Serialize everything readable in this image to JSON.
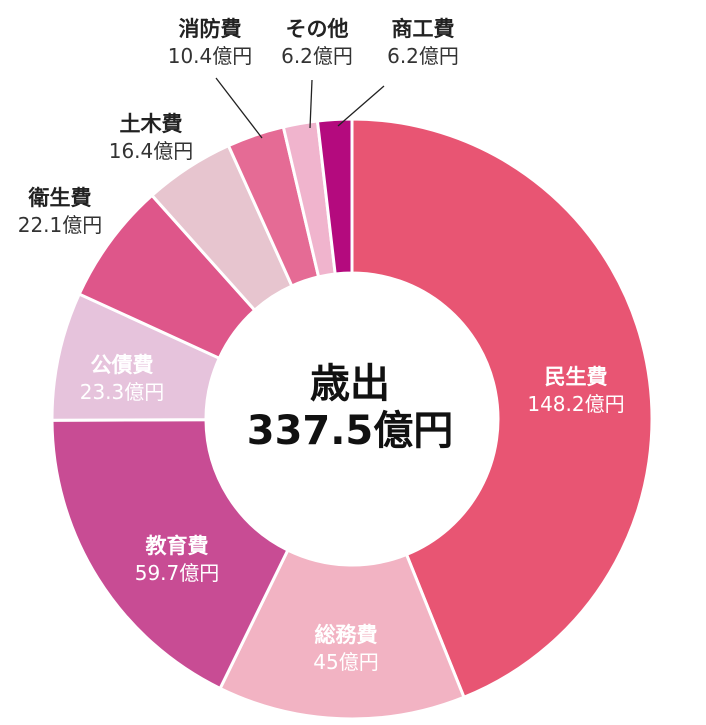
{
  "chart_data": {
    "type": "pie",
    "title": "歳出",
    "total_label": "337.5億円",
    "unit": "億円",
    "slices": [
      {
        "name": "民生費",
        "value_label": "148.2億円",
        "value": 148.2,
        "color": "#e85573"
      },
      {
        "name": "総務費",
        "value_label": "45億円",
        "value": 45.0,
        "color": "#f2b3c3"
      },
      {
        "name": "教育費",
        "value_label": "59.7億円",
        "value": 59.7,
        "color": "#c84c94"
      },
      {
        "name": "公債費",
        "value_label": "23.3億円",
        "value": 23.3,
        "color": "#e6c3dc"
      },
      {
        "name": "衛生費",
        "value_label": "22.1億円",
        "value": 22.1,
        "color": "#de568a"
      },
      {
        "name": "土木費",
        "value_label": "16.4億円",
        "value": 16.4,
        "color": "#e7c5cf"
      },
      {
        "name": "消防費",
        "value_label": "10.4億円",
        "value": 10.4,
        "color": "#e56b95"
      },
      {
        "name": "その他",
        "value_label": "6.2億円",
        "value": 6.2,
        "color": "#f0b4cd"
      },
      {
        "name": "商工費",
        "value_label": "6.2億円",
        "value": 6.2,
        "color": "#b40a7e"
      }
    ]
  }
}
